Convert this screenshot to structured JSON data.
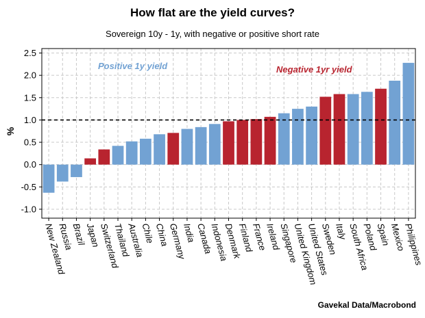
{
  "chart_data": {
    "type": "bar",
    "title": "How flat are the yield curves?",
    "subtitle": "Sovereign 10y - 1y, with negative or positive short rate",
    "ylabel": "%",
    "ylim": [
      -1.2,
      2.6
    ],
    "yticks": [
      -1.0,
      -0.5,
      0.0,
      0.5,
      1.0,
      1.5,
      2.0,
      2.5
    ],
    "ytick_labels": [
      "-1.0",
      "-0.5",
      "0.0",
      "0.5",
      "1.0",
      "1.5",
      "2.0",
      "2.5"
    ],
    "reference_line": 1.0,
    "grid": true,
    "source": "Gavekal Data/Macrobond",
    "colors": {
      "positive": "#72a2d3",
      "negative": "#b8242f"
    },
    "legend": [
      {
        "label": "Positive 1y yield",
        "color": "#72a2d3",
        "key": "positive"
      },
      {
        "label": "Negative 1yr yield",
        "color": "#b8242f",
        "key": "negative"
      }
    ],
    "categories": [
      "New Zealand",
      "Russia",
      "Brazil",
      "Japan",
      "Switzerland",
      "Thailand",
      "Australia",
      "Chile",
      "China",
      "Germany",
      "India",
      "Canada",
      "Indonesia",
      "Denmark",
      "Finland",
      "France",
      "Ireland",
      "Singapore",
      "United Kingdom",
      "United States",
      "Sweden",
      "Italy",
      "South Africa",
      "Poland",
      "Spain",
      "Mexico",
      "Philippines"
    ],
    "values": [
      -0.63,
      -0.38,
      -0.28,
      0.14,
      0.34,
      0.42,
      0.52,
      0.58,
      0.68,
      0.71,
      0.8,
      0.84,
      0.91,
      0.97,
      1.0,
      1.02,
      1.07,
      1.15,
      1.25,
      1.3,
      1.52,
      1.58,
      1.58,
      1.63,
      1.7,
      1.88,
      2.28
    ],
    "short_rate": [
      "positive",
      "positive",
      "positive",
      "negative",
      "negative",
      "positive",
      "positive",
      "positive",
      "positive",
      "negative",
      "positive",
      "positive",
      "positive",
      "negative",
      "negative",
      "negative",
      "negative",
      "positive",
      "positive",
      "positive",
      "negative",
      "negative",
      "positive",
      "positive",
      "negative",
      "positive",
      "positive"
    ]
  }
}
